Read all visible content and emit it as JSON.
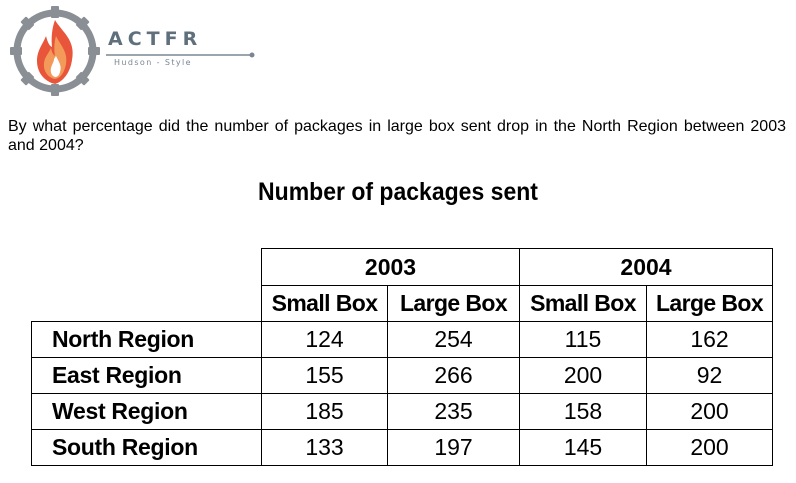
{
  "brand": {
    "name": "ACTFR",
    "tagline": "Hudson - Style",
    "logo_icon": "flame-in-gear-icon",
    "colors": {
      "gear": "#8a8f96",
      "flame_outer": "#e8553a",
      "flame_inner": "#f39a5a",
      "flame_core": "#ffffff",
      "text": "#5f6f7c"
    }
  },
  "question": "By what percentage did the number of packages in large box sent drop in the North Region between 2003 and 2004?",
  "table": {
    "title": "Number of packages sent",
    "years": [
      "2003",
      "2004"
    ],
    "subheaders": [
      "Small Box",
      "Large Box",
      "Small Box",
      "Large Box"
    ],
    "rows": [
      {
        "region": "North Region",
        "values": [
          "124",
          "254",
          "115",
          "162"
        ]
      },
      {
        "region": "East Region",
        "values": [
          "155",
          "266",
          "200",
          "92"
        ]
      },
      {
        "region": "West Region",
        "values": [
          "185",
          "235",
          "158",
          "200"
        ]
      },
      {
        "region": "South Region",
        "values": [
          "133",
          "197",
          "145",
          "200"
        ]
      }
    ]
  }
}
